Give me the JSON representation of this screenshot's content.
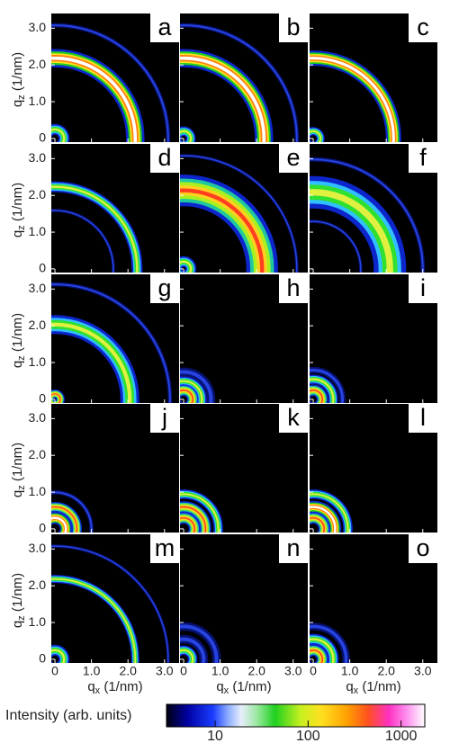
{
  "panel_labels": [
    "a",
    "b",
    "c",
    "d",
    "e",
    "f",
    "g",
    "h",
    "i",
    "j",
    "k",
    "l",
    "m",
    "n",
    "o"
  ],
  "x_axis": {
    "symbol": "q",
    "subscript": "x",
    "unit": "(1/nm)",
    "lim": [
      -0.1,
      3.4
    ],
    "ticks": [
      0,
      {
        "value": 1,
        "label": "1.0"
      },
      {
        "value": 2,
        "label": "2.0"
      },
      {
        "value": 3,
        "label": "3.0"
      }
    ]
  },
  "y_axis": {
    "symbol": "q",
    "subscript": "z",
    "unit": "(1/nm)",
    "lim": [
      -0.1,
      3.4
    ],
    "ticks": [
      0,
      {
        "value": 1,
        "label": "1.0"
      },
      {
        "value": 2,
        "label": "2.0"
      },
      {
        "value": 3,
        "label": "3.0"
      }
    ]
  },
  "colorbar": {
    "label": "Intensity (arb. units)",
    "scale": "log",
    "lim": [
      3,
      1800
    ],
    "ticks": [
      10,
      100,
      1000
    ]
  }
}
